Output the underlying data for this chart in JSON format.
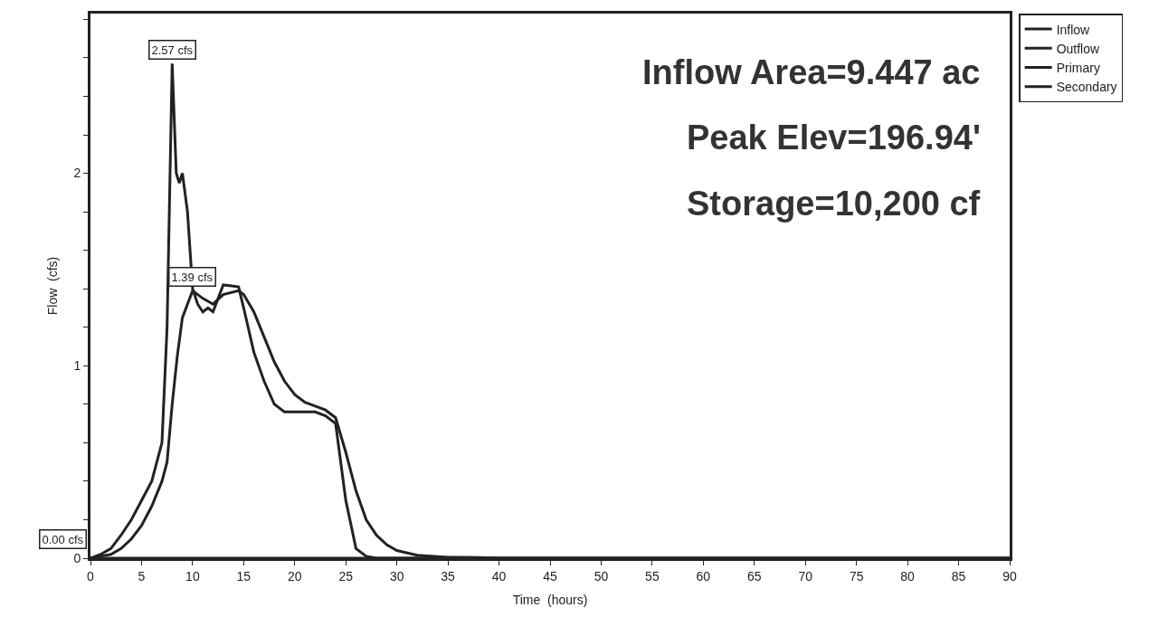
{
  "chart_data": {
    "type": "line",
    "xlabel": "Time  (hours)",
    "ylabel": "Flow  (cfs)",
    "xlim": [
      0,
      90
    ],
    "xticks": [
      0,
      5,
      10,
      15,
      20,
      25,
      30,
      35,
      40,
      45,
      50,
      55,
      60,
      65,
      70,
      75,
      80,
      85,
      90
    ],
    "ylim": [
      0,
      2.83
    ],
    "yticks": [
      0,
      {
        "value": 0.2,
        "label": null
      },
      {
        "value": 0.4,
        "label": null
      },
      {
        "value": 0.6,
        "label": null
      },
      {
        "value": 0.8,
        "label": null
      },
      1,
      {
        "value": 1.2,
        "label": null
      },
      {
        "value": 1.4,
        "label": null
      },
      {
        "value": 1.6,
        "label": null
      },
      {
        "value": 1.8,
        "label": null
      },
      2,
      {
        "value": 2.2,
        "label": null
      },
      {
        "value": 2.4,
        "label": null
      },
      {
        "value": 2.6,
        "label": null
      },
      {
        "value": 2.8,
        "label": null
      }
    ],
    "legend": "top right",
    "marker": "none",
    "line_style": "solid",
    "series": [
      {
        "name": "Inflow",
        "color": "#222222",
        "x": [
          0,
          1,
          2,
          3,
          4,
          5,
          6,
          7,
          7.5,
          8,
          8.4,
          8.7,
          9,
          9.5,
          10,
          10.5,
          11,
          11.5,
          12,
          12.5,
          13,
          14.5,
          15,
          16,
          17,
          18,
          19,
          22,
          23,
          24,
          25,
          26,
          27,
          28,
          90
        ],
        "values": [
          0,
          0.02,
          0.05,
          0.12,
          0.2,
          0.3,
          0.4,
          0.6,
          1.2,
          2.57,
          2.0,
          1.95,
          2.0,
          1.8,
          1.4,
          1.32,
          1.28,
          1.3,
          1.28,
          1.35,
          1.42,
          1.41,
          1.3,
          1.07,
          0.92,
          0.8,
          0.76,
          0.76,
          0.74,
          0.7,
          0.3,
          0.05,
          0.01,
          0,
          0
        ]
      },
      {
        "name": "Outflow",
        "color": "#222222",
        "x": [
          0,
          1,
          2,
          3,
          4,
          5,
          6,
          7,
          7.5,
          8,
          8.5,
          9,
          10,
          11,
          12,
          13,
          14.5,
          15,
          16,
          17,
          18,
          19,
          20,
          21,
          22,
          23,
          24,
          25,
          26,
          27,
          28,
          29,
          30,
          32,
          35,
          38,
          40,
          90
        ],
        "values": [
          0,
          0.01,
          0.02,
          0.05,
          0.1,
          0.17,
          0.27,
          0.4,
          0.5,
          0.8,
          1.05,
          1.25,
          1.39,
          1.35,
          1.32,
          1.37,
          1.39,
          1.37,
          1.28,
          1.15,
          1.02,
          0.92,
          0.85,
          0.81,
          0.79,
          0.77,
          0.73,
          0.55,
          0.35,
          0.2,
          0.12,
          0.07,
          0.04,
          0.015,
          0.005,
          0.003,
          0,
          0
        ]
      },
      {
        "name": "Primary",
        "color": "#222222"
      },
      {
        "name": "Secondary",
        "color": "#222222",
        "x": [
          0,
          90
        ],
        "values": [
          0,
          0
        ]
      }
    ],
    "annotations": [
      {
        "text": "2.57 cfs",
        "x": 8,
        "y": 2.57
      },
      {
        "text": "1.39 cfs",
        "x": 10,
        "y": 1.39
      },
      {
        "text": "0.00 cfs",
        "x": 0,
        "y": 0
      },
      "Inflow Area=9.447 ac",
      "Peak Elev=196.94'",
      "Storage=10,200 cf"
    ]
  }
}
